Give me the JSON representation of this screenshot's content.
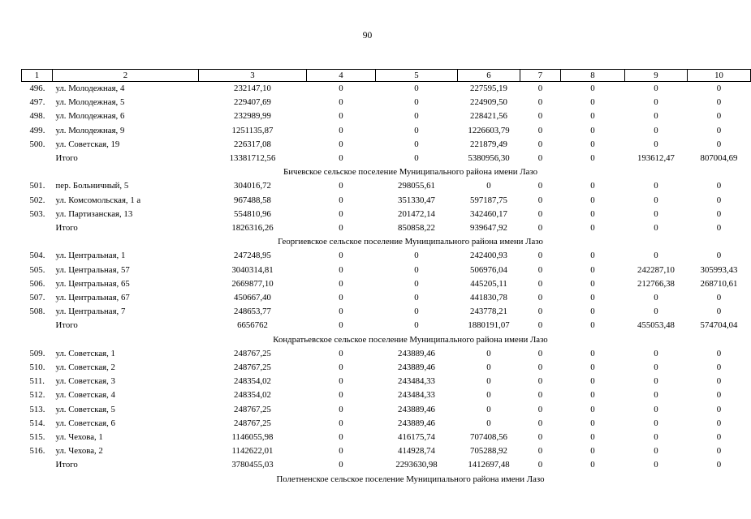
{
  "page_number": "90",
  "header": [
    "1",
    "2",
    "3",
    "4",
    "5",
    "6",
    "7",
    "8",
    "9",
    "10"
  ],
  "rows": [
    {
      "type": "row",
      "n": "496.",
      "addr": "ул. Молодежная, 4",
      "v": [
        "232147,10",
        "0",
        "0",
        "227595,19",
        "0",
        "0",
        "0",
        "0"
      ]
    },
    {
      "type": "row",
      "n": "497.",
      "addr": "ул. Молодежная, 5",
      "v": [
        "229407,69",
        "0",
        "0",
        "224909,50",
        "0",
        "0",
        "0",
        "0"
      ]
    },
    {
      "type": "row",
      "n": "498.",
      "addr": "ул. Молодежная, 6",
      "v": [
        "232989,99",
        "0",
        "0",
        "228421,56",
        "0",
        "0",
        "0",
        "0"
      ]
    },
    {
      "type": "row",
      "n": "499.",
      "addr": "ул. Молодежная, 9",
      "v": [
        "1251135,87",
        "0",
        "0",
        "1226603,79",
        "0",
        "0",
        "0",
        "0"
      ]
    },
    {
      "type": "row",
      "n": "500.",
      "addr": "ул. Советская, 19",
      "v": [
        "226317,08",
        "0",
        "0",
        "221879,49",
        "0",
        "0",
        "0",
        "0"
      ]
    },
    {
      "type": "total",
      "label": "Итого",
      "v": [
        "13381712,56",
        "0",
        "0",
        "5380956,30",
        "0",
        "0",
        "193612,47",
        "807004,69"
      ]
    },
    {
      "type": "section",
      "title": "Бичевское сельское поселение Муниципального района имени Лазо"
    },
    {
      "type": "row",
      "n": "501.",
      "addr": "пер. Больничный, 5",
      "v": [
        "304016,72",
        "0",
        "298055,61",
        "0",
        "0",
        "0",
        "0",
        "0"
      ]
    },
    {
      "type": "row",
      "n": "502.",
      "addr": "ул. Комсомольская, 1 а",
      "v": [
        "967488,58",
        "0",
        "351330,47",
        "597187,75",
        "0",
        "0",
        "0",
        "0"
      ]
    },
    {
      "type": "row",
      "n": "503.",
      "addr": "ул. Партизанская, 13",
      "v": [
        "554810,96",
        "0",
        "201472,14",
        "342460,17",
        "0",
        "0",
        "0",
        "0"
      ]
    },
    {
      "type": "total",
      "label": "Итого",
      "v": [
        "1826316,26",
        "0",
        "850858,22",
        "939647,92",
        "0",
        "0",
        "0",
        "0"
      ]
    },
    {
      "type": "section",
      "title": "Георгиевское сельское поселение Муниципального района имени Лазо"
    },
    {
      "type": "row",
      "n": "504.",
      "addr": "ул. Центральная, 1",
      "v": [
        "247248,95",
        "0",
        "0",
        "242400,93",
        "0",
        "0",
        "0",
        "0"
      ]
    },
    {
      "type": "row",
      "n": "505.",
      "addr": "ул. Центральная, 57",
      "v": [
        "3040314,81",
        "0",
        "0",
        "506976,04",
        "0",
        "0",
        "242287,10",
        "305993,43"
      ]
    },
    {
      "type": "row",
      "n": "506.",
      "addr": "ул. Центральная, 65",
      "v": [
        "2669877,10",
        "0",
        "0",
        "445205,11",
        "0",
        "0",
        "212766,38",
        "268710,61"
      ]
    },
    {
      "type": "row",
      "n": "507.",
      "addr": "ул. Центральная, 67",
      "v": [
        "450667,40",
        "0",
        "0",
        "441830,78",
        "0",
        "0",
        "0",
        "0"
      ]
    },
    {
      "type": "row",
      "n": "508.",
      "addr": "ул. Центральная, 7",
      "v": [
        "248653,77",
        "0",
        "0",
        "243778,21",
        "0",
        "0",
        "0",
        "0"
      ]
    },
    {
      "type": "total",
      "label": "Итого",
      "v": [
        "6656762",
        "0",
        "0",
        "1880191,07",
        "0",
        "0",
        "455053,48",
        "574704,04"
      ]
    },
    {
      "type": "section",
      "title": "Кондратьевское сельское поселение Муниципального района имени Лазо"
    },
    {
      "type": "row",
      "n": "509.",
      "addr": "ул. Советская, 1",
      "v": [
        "248767,25",
        "0",
        "243889,46",
        "0",
        "0",
        "0",
        "0",
        "0"
      ]
    },
    {
      "type": "row",
      "n": "510.",
      "addr": "ул. Советская, 2",
      "v": [
        "248767,25",
        "0",
        "243889,46",
        "0",
        "0",
        "0",
        "0",
        "0"
      ]
    },
    {
      "type": "row",
      "n": "511.",
      "addr": "ул. Советская, 3",
      "v": [
        "248354,02",
        "0",
        "243484,33",
        "0",
        "0",
        "0",
        "0",
        "0"
      ]
    },
    {
      "type": "row",
      "n": "512.",
      "addr": "ул. Советская, 4",
      "v": [
        "248354,02",
        "0",
        "243484,33",
        "0",
        "0",
        "0",
        "0",
        "0"
      ]
    },
    {
      "type": "row",
      "n": "513.",
      "addr": "ул. Советская, 5",
      "v": [
        "248767,25",
        "0",
        "243889,46",
        "0",
        "0",
        "0",
        "0",
        "0"
      ]
    },
    {
      "type": "row",
      "n": "514.",
      "addr": "ул. Советская, 6",
      "v": [
        "248767,25",
        "0",
        "243889,46",
        "0",
        "0",
        "0",
        "0",
        "0"
      ]
    },
    {
      "type": "row",
      "n": "515.",
      "addr": "ул. Чехова, 1",
      "v": [
        "1146055,98",
        "0",
        "416175,74",
        "707408,56",
        "0",
        "0",
        "0",
        "0"
      ]
    },
    {
      "type": "row",
      "n": "516.",
      "addr": "ул. Чехова, 2",
      "v": [
        "1142622,01",
        "0",
        "414928,74",
        "705288,92",
        "0",
        "0",
        "0",
        "0"
      ]
    },
    {
      "type": "total",
      "label": "Итого",
      "v": [
        "3780455,03",
        "0",
        "2293630,98",
        "1412697,48",
        "0",
        "0",
        "0",
        "0"
      ]
    },
    {
      "type": "section",
      "title": "Полетненское сельское поселение Муниципального района имени Лазо"
    }
  ]
}
